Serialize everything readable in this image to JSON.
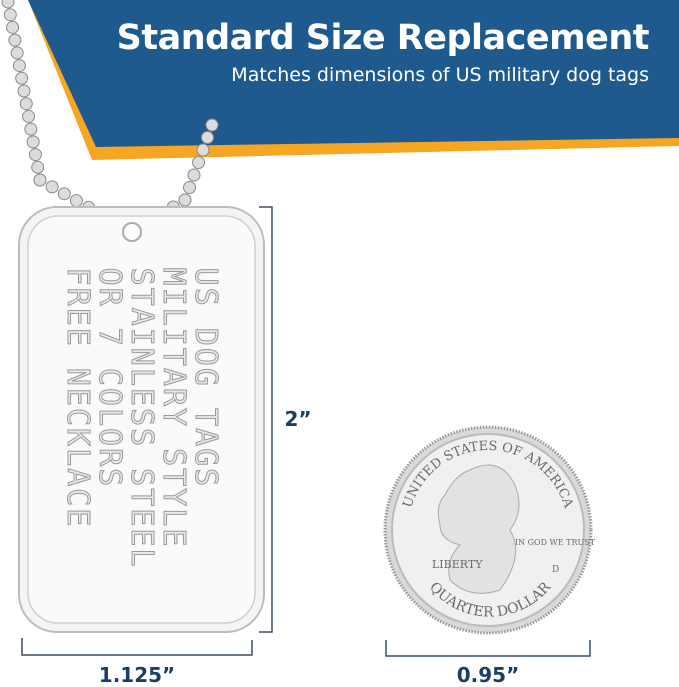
{
  "header": {
    "title": "Standard Size Replacement",
    "subtitle": "Matches dimensions of US military dog tags"
  },
  "tag": {
    "lines": [
      "US DOG TAGS",
      "MILITARY STYLE",
      "STAINLESS STEEL",
      "OR 7 COLORS",
      "FREE NECKLACE"
    ]
  },
  "coin": {
    "top": "UNITED STATES OF AMERICA",
    "liberty": "LIBERTY",
    "motto": "IN GOD WE TRUST",
    "bottom": "QUARTER DOLLAR",
    "mint": "D"
  },
  "dimensions": {
    "tag_height": "2”",
    "tag_width": "1.125”",
    "coin_diameter": "0.95”"
  },
  "colors": {
    "banner": "#1e5a8e",
    "accent": "#f5a623",
    "dim_text": "#1b3e66"
  }
}
